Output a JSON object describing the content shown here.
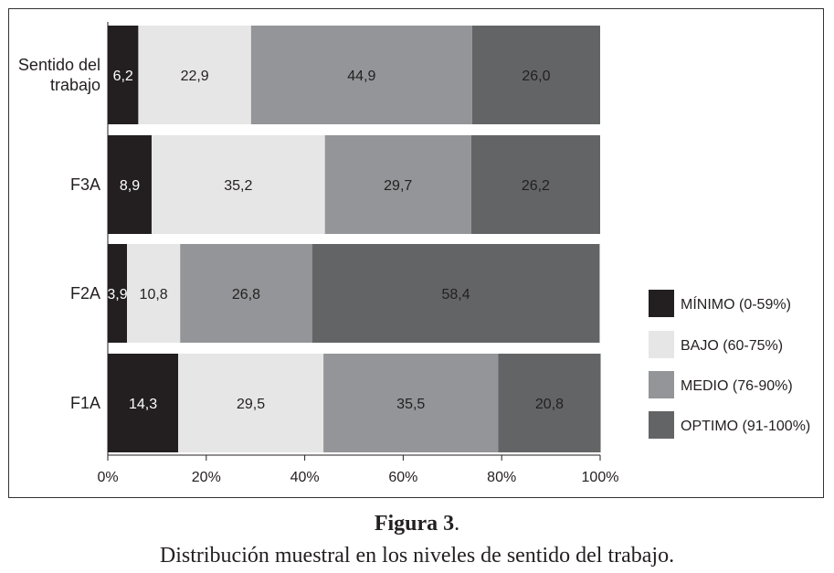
{
  "chart_data": {
    "type": "bar",
    "orientation": "horizontal",
    "stacked": "100%",
    "categories": [
      "Sentido del trabajo",
      "F3A",
      "F2A",
      "F1A"
    ],
    "category_lines": [
      [
        "Sentido del",
        "trabajo"
      ],
      [
        "F3A"
      ],
      [
        "F2A"
      ],
      [
        "F1A"
      ]
    ],
    "series": [
      {
        "name": "MÍNIMO (0-59%)",
        "color": "#231f20",
        "text_color": "#ffffff",
        "values": [
          6.2,
          8.9,
          3.9,
          14.3
        ],
        "labels": [
          "6,2",
          "8,9",
          "3,9",
          "14,3"
        ]
      },
      {
        "name": "BAJO (60-75%)",
        "color": "#e6e6e6",
        "text_color": "#231f20",
        "values": [
          22.9,
          35.2,
          10.8,
          29.5
        ],
        "labels": [
          "22,9",
          "35,2",
          "10,8",
          "29,5"
        ]
      },
      {
        "name": "MEDIO (76-90%)",
        "color": "#939598",
        "text_color": "#231f20",
        "values": [
          44.9,
          29.7,
          26.8,
          35.5
        ],
        "labels": [
          "44,9",
          "29,7",
          "26,8",
          "35,5"
        ]
      },
      {
        "name": "OPTIMO (91-100%)",
        "color": "#636466",
        "text_color": "#231f20",
        "values": [
          26.0,
          26.2,
          58.4,
          20.8
        ],
        "labels": [
          "26,0",
          "26,2",
          "58,4",
          "20,8"
        ]
      }
    ],
    "xlim": [
      0,
      100
    ],
    "xticks": [
      0,
      20,
      40,
      60,
      80,
      100
    ],
    "xtick_labels": [
      "0%",
      "20%",
      "40%",
      "60%",
      "80%",
      "100%"
    ],
    "grid": false,
    "legend": "right"
  },
  "caption": {
    "figure_label": "Figura 3",
    "figure_punct": ".",
    "subtitle": "Distribución muestral en los niveles de sentido del trabajo."
  }
}
